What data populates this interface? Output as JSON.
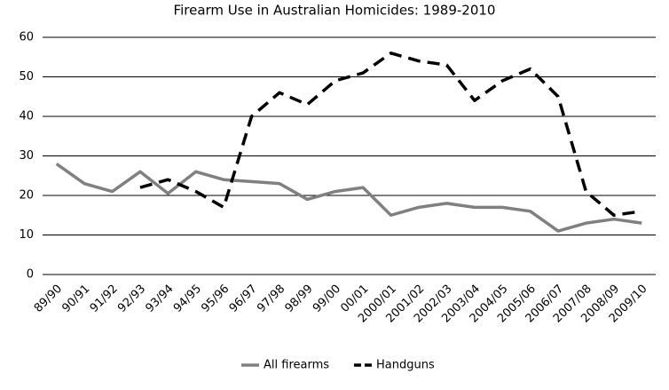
{
  "chart_data": {
    "type": "line",
    "title": "Firearm Use in Australian Homicides: 1989-2010",
    "categories": [
      "89/90",
      "90/91",
      "91/92",
      "92/93",
      "93/94",
      "94/95",
      "95/96",
      "96/97",
      "97/98",
      "98/99",
      "99/00",
      "00/01",
      "2000/01",
      "2001/02",
      "2002/03",
      "2003/04",
      "2004/05",
      "2005/06",
      "2006/07",
      "2007/08",
      "2008/09",
      "2009/10"
    ],
    "series": [
      {
        "name": "All firearms",
        "color": "#808080",
        "dashed": false,
        "values": [
          28,
          23,
          21,
          26,
          20.5,
          26,
          24,
          23.5,
          23,
          19,
          21,
          22,
          15,
          17,
          18,
          17,
          17,
          16,
          11,
          13,
          14,
          13
        ]
      },
      {
        "name": "Handguns",
        "color": "#000000",
        "dashed": true,
        "values": [
          null,
          null,
          null,
          22,
          24,
          21,
          17,
          40,
          46,
          43,
          49,
          51,
          56,
          54,
          53,
          44,
          49,
          52,
          45,
          21,
          15,
          16
        ]
      }
    ],
    "ylim": [
      0,
      60
    ],
    "yticks": [
      0,
      10,
      20,
      30,
      40,
      50,
      60
    ],
    "grid": true,
    "legend": "bottom"
  }
}
